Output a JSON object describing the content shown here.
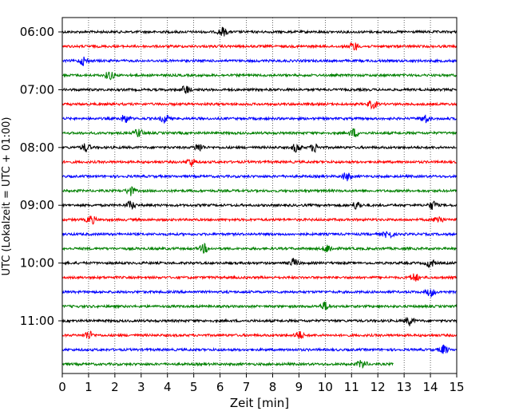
{
  "chart_data": {
    "type": "line",
    "title": "",
    "xlabel": "Zeit  [min]",
    "ylabel": "UTC (Lokalzeit = UTC + 01:00)",
    "xlim": [
      0,
      15
    ],
    "x_ticks": [
      "0",
      "1",
      "2",
      "3",
      "4",
      "5",
      "6",
      "7",
      "8",
      "9",
      "10",
      "11",
      "12",
      "13",
      "14",
      "15"
    ],
    "y_ticks": [
      {
        "label": "06:00",
        "row": 0
      },
      {
        "label": "07:00",
        "row": 4
      },
      {
        "label": "08:00",
        "row": 8
      },
      {
        "label": "09:00",
        "row": 12
      },
      {
        "label": "10:00",
        "row": 16
      },
      {
        "label": "11:00",
        "row": 20
      }
    ],
    "grid": "vertical-dotted",
    "row_minutes": 15,
    "colors": [
      "#000000",
      "#ff0000",
      "#0000ff",
      "#008000"
    ],
    "traces": [
      {
        "start": "06:00",
        "end_min": 15,
        "bursts": [
          6.1
        ]
      },
      {
        "start": "06:15",
        "end_min": 15,
        "bursts": [
          11.1
        ]
      },
      {
        "start": "06:30",
        "end_min": 15,
        "bursts": [
          0.8
        ]
      },
      {
        "start": "06:45",
        "end_min": 15,
        "bursts": [
          1.8
        ]
      },
      {
        "start": "07:00",
        "end_min": 15,
        "bursts": [
          4.7
        ]
      },
      {
        "start": "07:15",
        "end_min": 15,
        "bursts": [
          11.8
        ]
      },
      {
        "start": "07:30",
        "end_min": 15,
        "bursts": [
          2.4,
          3.9,
          13.8
        ]
      },
      {
        "start": "07:45",
        "end_min": 15,
        "bursts": [
          2.9,
          11.1
        ]
      },
      {
        "start": "08:00",
        "end_min": 15,
        "bursts": [
          0.9,
          5.2,
          8.9,
          9.6
        ]
      },
      {
        "start": "08:15",
        "end_min": 15,
        "bursts": [
          4.9
        ]
      },
      {
        "start": "08:30",
        "end_min": 15,
        "bursts": [
          10.8
        ]
      },
      {
        "start": "08:45",
        "end_min": 15,
        "bursts": [
          2.6
        ]
      },
      {
        "start": "09:00",
        "end_min": 15,
        "bursts": [
          2.6,
          11.2,
          14.1
        ]
      },
      {
        "start": "09:15",
        "end_min": 15,
        "bursts": [
          1.1,
          14.3
        ]
      },
      {
        "start": "09:30",
        "end_min": 15,
        "bursts": [
          12.4
        ]
      },
      {
        "start": "09:45",
        "end_min": 15,
        "bursts": [
          5.4,
          10.1
        ]
      },
      {
        "start": "10:00",
        "end_min": 15,
        "bursts": [
          8.8,
          14.0
        ]
      },
      {
        "start": "10:15",
        "end_min": 15,
        "bursts": [
          13.4
        ]
      },
      {
        "start": "10:30",
        "end_min": 15,
        "bursts": [
          14.0
        ]
      },
      {
        "start": "10:45",
        "end_min": 15,
        "bursts": [
          10.0
        ]
      },
      {
        "start": "11:00",
        "end_min": 15,
        "bursts": [
          13.2
        ]
      },
      {
        "start": "11:15",
        "end_min": 15,
        "bursts": [
          1.0,
          9.0
        ]
      },
      {
        "start": "11:30",
        "end_min": 15,
        "bursts": [
          14.5
        ]
      },
      {
        "start": "11:45",
        "end_min": 12.6,
        "bursts": [
          11.4
        ]
      }
    ]
  }
}
